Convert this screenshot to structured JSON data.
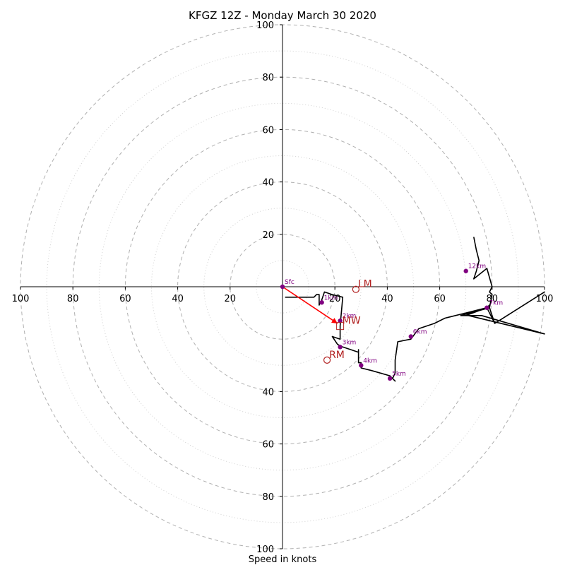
{
  "chart_data": {
    "type": "hodograph",
    "title": "KFGZ 12Z - Monday March 30 2020",
    "xlabel": "Speed in knots",
    "axis_range": [
      -100,
      100
    ],
    "ring_major": [
      20,
      40,
      60,
      80,
      100
    ],
    "ring_minor": [
      10,
      30,
      50,
      70,
      90
    ],
    "ticks": {
      "left": [
        "100",
        "80",
        "60",
        "40",
        "20"
      ],
      "right": [
        "20",
        "40",
        "60",
        "80",
        "100"
      ],
      "top": [
        "20",
        "40",
        "60",
        "80",
        "100"
      ],
      "bottom": [
        "40",
        "60",
        "80",
        "100"
      ]
    },
    "profile": [
      [
        1,
        -4
      ],
      [
        12,
        -4
      ],
      [
        13,
        -3
      ],
      [
        14,
        -3
      ],
      [
        14,
        -7
      ],
      [
        15,
        -5
      ],
      [
        16,
        -2
      ],
      [
        19,
        -3
      ],
      [
        23,
        -4
      ],
      [
        22,
        -15
      ],
      [
        22,
        -20
      ],
      [
        19,
        -19
      ],
      [
        21,
        -22
      ],
      [
        23,
        -23
      ],
      [
        29,
        -25
      ],
      [
        29,
        -24
      ],
      [
        29,
        -29
      ],
      [
        30,
        -29
      ],
      [
        30,
        -31
      ],
      [
        34,
        -32
      ],
      [
        41,
        -34
      ],
      [
        42,
        -35
      ],
      [
        43,
        -36
      ],
      [
        42,
        -35
      ],
      [
        43,
        -33
      ],
      [
        43,
        -28
      ],
      [
        44,
        -21
      ],
      [
        49,
        -20
      ],
      [
        52,
        -16
      ],
      [
        58,
        -14
      ],
      [
        62,
        -12
      ],
      [
        70,
        -10
      ],
      [
        74,
        -9
      ],
      [
        78,
        -8
      ],
      [
        79,
        -7
      ],
      [
        78,
        -8
      ],
      [
        79,
        -8
      ],
      [
        68,
        -11
      ],
      [
        71,
        -11
      ],
      [
        100,
        -18
      ],
      [
        76,
        -11
      ],
      [
        70,
        -11
      ],
      [
        78,
        -8
      ],
      [
        81,
        -14
      ],
      [
        100,
        -2
      ],
      [
        81,
        -14
      ],
      [
        79,
        -8
      ],
      [
        80,
        -3
      ],
      [
        79,
        -2
      ],
      [
        80,
        0
      ],
      [
        78,
        7
      ],
      [
        73,
        3
      ],
      [
        74,
        6
      ],
      [
        75,
        10
      ],
      [
        74,
        14
      ],
      [
        73,
        19
      ]
    ],
    "height_markers": [
      {
        "label": "Sfc",
        "u": 0,
        "v": 0
      },
      {
        "label": "1km",
        "u": 15,
        "v": -6
      },
      {
        "label": "2km",
        "u": 22,
        "v": -13
      },
      {
        "label": "3km",
        "u": 22,
        "v": -23
      },
      {
        "label": "4km",
        "u": 30,
        "v": -30
      },
      {
        "label": "5km",
        "u": 41,
        "v": -35
      },
      {
        "label": "6km",
        "u": 49,
        "v": -19
      },
      {
        "label": "7km",
        "u": 78,
        "v": -8
      },
      {
        "label": "12km",
        "u": 70,
        "v": 6
      }
    ],
    "storm_motions": [
      {
        "label": "LM",
        "u": 28,
        "v": -1
      },
      {
        "label": "MW",
        "u": 22,
        "v": -15
      },
      {
        "label": "RM",
        "u": 17,
        "v": -28
      }
    ],
    "shear_vector": {
      "from": [
        0,
        0
      ],
      "to": [
        21,
        -14
      ]
    },
    "colors": {
      "profile": "#000000",
      "marker": "#800080",
      "storm": "#b22222",
      "shear": "#ff0000",
      "grid": "#b0b0b0"
    }
  }
}
